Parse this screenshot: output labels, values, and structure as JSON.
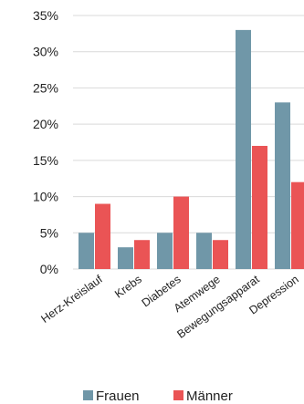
{
  "chart_data": {
    "type": "bar",
    "title": "",
    "xlabel": "",
    "ylabel": "",
    "categories": [
      "Herz-Kreislauf",
      "Krebs",
      "Diabetes",
      "Atemwege",
      "Bewegungsapparat",
      "Depression"
    ],
    "series": [
      {
        "name": "Frauen",
        "color": "#7097a8",
        "values": [
          5,
          3,
          5,
          5,
          33,
          23
        ]
      },
      {
        "name": "Männer",
        "color": "#ea5455",
        "values": [
          9,
          4,
          10,
          4,
          17,
          12
        ]
      }
    ],
    "ylim": [
      0,
      35
    ],
    "yticks": [
      "0%",
      "5%",
      "10%",
      "15%",
      "20%",
      "25%",
      "30%",
      "35%"
    ],
    "grid": true,
    "legend_position": "bottom"
  }
}
